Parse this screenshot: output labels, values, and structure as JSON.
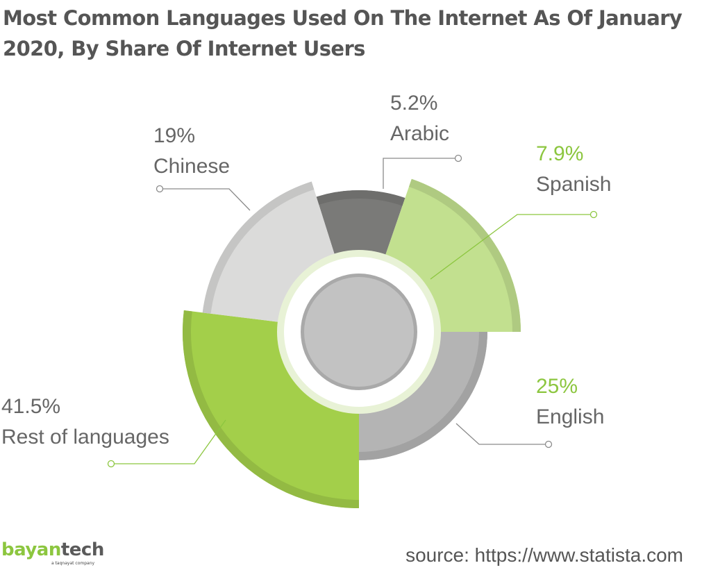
{
  "chart_data": {
    "type": "pie",
    "title": "Most Common Languages Used On The Internet As Of January 2020, By Share Of Internet Users",
    "units": "%",
    "slices": [
      {
        "label": "Arabic",
        "value": 5.2,
        "value_text": "5.2%",
        "color": "#7a7a78",
        "label_color": "#666666"
      },
      {
        "label": "Spanish",
        "value": 7.9,
        "value_text": "7.9%",
        "color": "#c2e08f",
        "label_color": "#8cc63f"
      },
      {
        "label": "English",
        "value": 25,
        "value_text": "25%",
        "color": "#b4b4b4",
        "label_color": "#8cc63f"
      },
      {
        "label": "Rest of languages",
        "value": 41.5,
        "value_text": "41.5%",
        "color": "#a3cf4a",
        "label_color": "#666666"
      },
      {
        "label": "Chinese",
        "value": 19,
        "value_text": "19%",
        "color": "#dbdbda",
        "label_color": "#666666"
      }
    ]
  },
  "branding": {
    "logo_part1": "bayan",
    "logo_part2": "tech",
    "logo_tagline": "a taqnayat company"
  },
  "source": "source: https://www.statista.com"
}
